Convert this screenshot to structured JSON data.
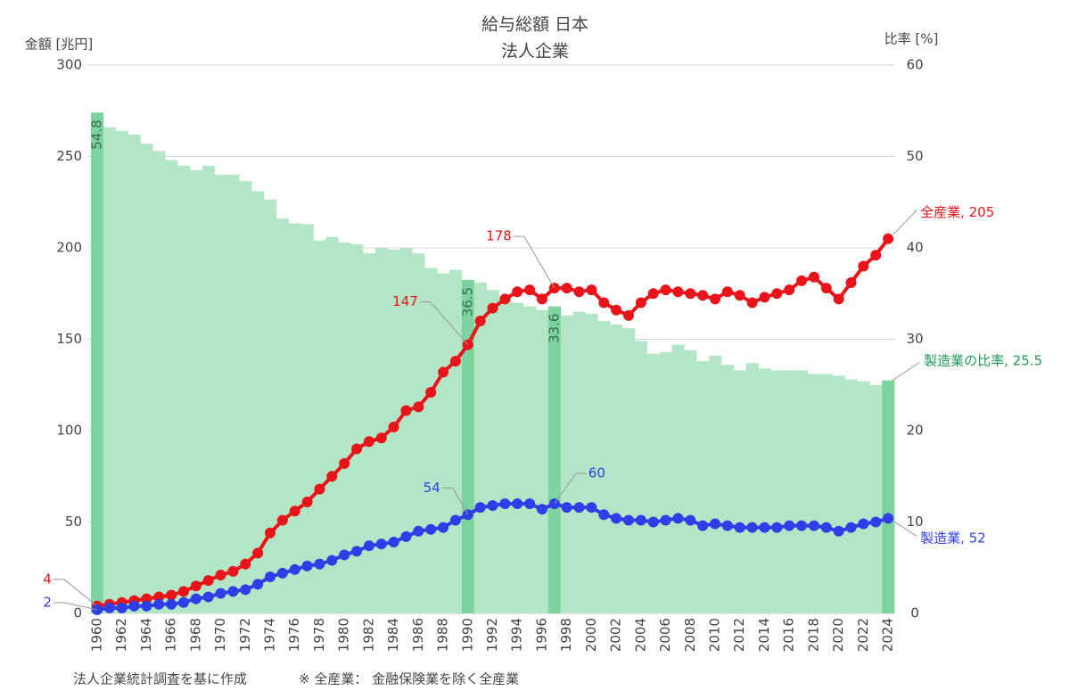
{
  "chart_data": {
    "type": "combo",
    "title": "給与総額 日本",
    "subtitle": "法人企業",
    "y_label": "金額 [兆円]",
    "y2_label": "比率 [%]",
    "notes": [
      "法人企業統計調査を基に作成",
      "※ 全産業： 金融保険業を除く全産業"
    ],
    "x": [
      1960,
      1961,
      1962,
      1963,
      1964,
      1965,
      1966,
      1967,
      1968,
      1969,
      1970,
      1971,
      1972,
      1973,
      1974,
      1975,
      1976,
      1977,
      1978,
      1979,
      1980,
      1981,
      1982,
      1983,
      1984,
      1985,
      1986,
      1987,
      1988,
      1989,
      1990,
      1991,
      1992,
      1993,
      1994,
      1995,
      1996,
      1997,
      1998,
      1999,
      2000,
      2001,
      2002,
      2003,
      2004,
      2005,
      2006,
      2007,
      2008,
      2009,
      2010,
      2011,
      2012,
      2013,
      2014,
      2015,
      2016,
      2017,
      2018,
      2019,
      2020,
      2021,
      2022,
      2023,
      2024
    ],
    "xlim": [
      1959.5,
      2024.5
    ],
    "xticks": [
      1960,
      1962,
      1964,
      1966,
      1968,
      1970,
      1972,
      1974,
      1976,
      1978,
      1980,
      1982,
      1984,
      1986,
      1988,
      1990,
      1992,
      1994,
      1996,
      1998,
      2000,
      2002,
      2004,
      2006,
      2008,
      2010,
      2012,
      2014,
      2016,
      2018,
      2020,
      2022,
      2024
    ],
    "ylim": [
      0,
      300
    ],
    "yticks": [
      0,
      50,
      100,
      150,
      200,
      250,
      300
    ],
    "y2lim": [
      0,
      60
    ],
    "y2ticks": [
      0,
      10,
      20,
      30,
      40,
      50,
      60
    ],
    "grid": true,
    "series": [
      {
        "name": "製造業の比率",
        "type": "bar",
        "axis": "y2",
        "color": "#b3e6c6",
        "highlight_color": "#7dd39f",
        "values": [
          54.8,
          53.2,
          52.8,
          52.4,
          51.4,
          50.6,
          49.6,
          49,
          48.5,
          49,
          48,
          48,
          47.3,
          46.2,
          45.3,
          43.2,
          42.7,
          42.6,
          40.8,
          41.2,
          40.6,
          40.4,
          39.4,
          40,
          39.8,
          40,
          39.4,
          37.8,
          37.2,
          37.6,
          36.5,
          36.2,
          35.4,
          34.6,
          34,
          33.6,
          33.2,
          33.6,
          32.6,
          33,
          32.8,
          32,
          31.6,
          31.2,
          29.8,
          28.4,
          28.6,
          29.4,
          28.8,
          27.6,
          28.2,
          27.2,
          26.6,
          27.4,
          26.8,
          26.6,
          26.6,
          26.6,
          26.2,
          26.2,
          26,
          25.6,
          25.4,
          25,
          25.5
        ],
        "value_labels": [
          "54.8",
          null,
          null,
          null,
          null,
          null,
          null,
          null,
          null,
          null,
          null,
          null,
          null,
          null,
          null,
          null,
          null,
          null,
          null,
          null,
          null,
          null,
          null,
          null,
          null,
          null,
          null,
          null,
          null,
          null,
          "36.5",
          null,
          null,
          null,
          null,
          null,
          null,
          "33.6",
          null,
          null,
          null,
          null,
          null,
          null,
          null,
          null,
          null,
          null,
          null,
          null,
          null,
          null,
          null,
          null,
          null,
          null,
          null,
          null,
          null,
          null,
          null,
          null,
          null,
          null,
          ", 25.5"
        ]
      },
      {
        "name": "全産業",
        "type": "line",
        "axis": "y",
        "color": "#e8141a",
        "values": [
          4,
          5,
          6,
          7,
          8,
          9,
          10,
          12,
          15,
          18,
          21,
          23,
          27,
          33,
          44,
          51,
          56,
          61,
          68,
          75,
          82,
          90,
          94,
          96,
          102,
          111,
          113,
          121,
          132,
          138,
          147,
          160,
          167,
          172,
          176,
          177,
          172,
          178,
          178,
          176,
          177,
          170,
          166,
          163,
          170,
          175,
          177,
          176,
          175,
          174,
          172,
          176,
          174,
          170,
          173,
          175,
          177,
          182,
          184,
          178,
          172,
          181,
          190,
          196,
          205
        ],
        "value_labels": [
          "4",
          null,
          null,
          null,
          null,
          null,
          null,
          null,
          null,
          null,
          null,
          null,
          null,
          null,
          null,
          null,
          null,
          null,
          null,
          null,
          null,
          null,
          null,
          null,
          null,
          null,
          null,
          null,
          null,
          null,
          "147",
          null,
          null,
          null,
          null,
          null,
          null,
          "178",
          null,
          null,
          null,
          null,
          null,
          null,
          null,
          null,
          null,
          null,
          null,
          null,
          null,
          null,
          null,
          null,
          null,
          null,
          null,
          null,
          null,
          null,
          null,
          null,
          null,
          null,
          ", 205"
        ]
      },
      {
        "name": "製造業",
        "type": "line",
        "axis": "y",
        "color": "#2f3fe8",
        "values": [
          2,
          3,
          3,
          4,
          4,
          5,
          5,
          6,
          8,
          9,
          11,
          12,
          13,
          16,
          20,
          22,
          24,
          26,
          27,
          29,
          32,
          34,
          37,
          38,
          39,
          42,
          45,
          46,
          47,
          51,
          54,
          58,
          59,
          60,
          60,
          60,
          57,
          60,
          58,
          58,
          58,
          54,
          52,
          51,
          51,
          50,
          51,
          52,
          51,
          48,
          49,
          48,
          47,
          47,
          47,
          47,
          48,
          48,
          48,
          47,
          45,
          47,
          49,
          50,
          52
        ],
        "value_labels": [
          "2",
          null,
          null,
          null,
          null,
          null,
          null,
          null,
          null,
          null,
          null,
          null,
          null,
          null,
          null,
          null,
          null,
          null,
          null,
          null,
          null,
          null,
          null,
          null,
          null,
          null,
          null,
          null,
          null,
          null,
          "54",
          null,
          null,
          null,
          null,
          null,
          null,
          "60",
          null,
          null,
          null,
          null,
          null,
          null,
          null,
          null,
          null,
          null,
          null,
          null,
          null,
          null,
          null,
          null,
          null,
          null,
          null,
          null,
          null,
          null,
          null,
          null,
          null,
          null,
          ", 52"
        ]
      }
    ]
  }
}
